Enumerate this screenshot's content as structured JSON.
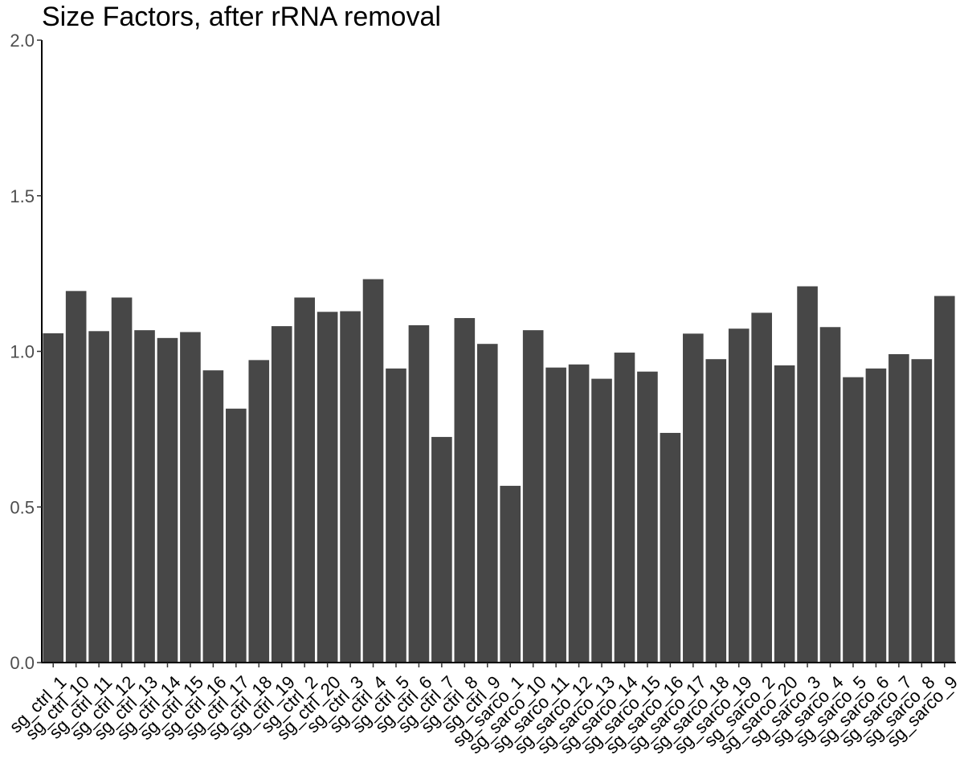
{
  "chart_data": {
    "type": "bar",
    "title": "Size Factors, after rRNA removal",
    "xlabel": "",
    "ylabel": "",
    "ylim": [
      0,
      2.0
    ],
    "y_ticks": [
      "0.0",
      "0.5",
      "1.0",
      "1.5",
      "2.0"
    ],
    "y_tick_values": [
      0,
      0.5,
      1.0,
      1.5,
      2.0
    ],
    "grid": false,
    "bar_color": "#474747",
    "categories": [
      "sg_ctrl_1",
      "sg_ctrl_10",
      "sg_ctrl_11",
      "sg_ctrl_12",
      "sg_ctrl_13",
      "sg_ctrl_14",
      "sg_ctrl_15",
      "sg_ctrl_16",
      "sg_ctrl_17",
      "sg_ctrl_18",
      "sg_ctrl_19",
      "sg_ctrl_2",
      "sg_ctrl_20",
      "sg_ctrl_3",
      "sg_ctrl_4",
      "sg_ctrl_5",
      "sg_ctrl_6",
      "sg_ctrl_7",
      "sg_ctrl_8",
      "sg_ctrl_9",
      "sg_sarco_1",
      "sg_sarco_10",
      "sg_sarco_11",
      "sg_sarco_12",
      "sg_sarco_13",
      "sg_sarco_14",
      "sg_sarco_15",
      "sg_sarco_16",
      "sg_sarco_17",
      "sg_sarco_18",
      "sg_sarco_19",
      "sg_sarco_2",
      "sg_sarco_20",
      "sg_sarco_3",
      "sg_sarco_4",
      "sg_sarco_5",
      "sg_sarco_6",
      "sg_sarco_7",
      "sg_sarco_8",
      "sg_sarco_9"
    ],
    "values": [
      1.058,
      1.194,
      1.065,
      1.173,
      1.068,
      1.043,
      1.062,
      0.939,
      0.816,
      0.972,
      1.081,
      1.173,
      1.127,
      1.129,
      1.232,
      0.945,
      1.084,
      0.725,
      1.107,
      1.024,
      0.568,
      1.068,
      0.948,
      0.958,
      0.912,
      0.996,
      0.935,
      0.738,
      1.057,
      0.975,
      1.073,
      1.124,
      0.955,
      1.209,
      1.078,
      0.917,
      0.945,
      0.991,
      0.975,
      1.178
    ]
  }
}
